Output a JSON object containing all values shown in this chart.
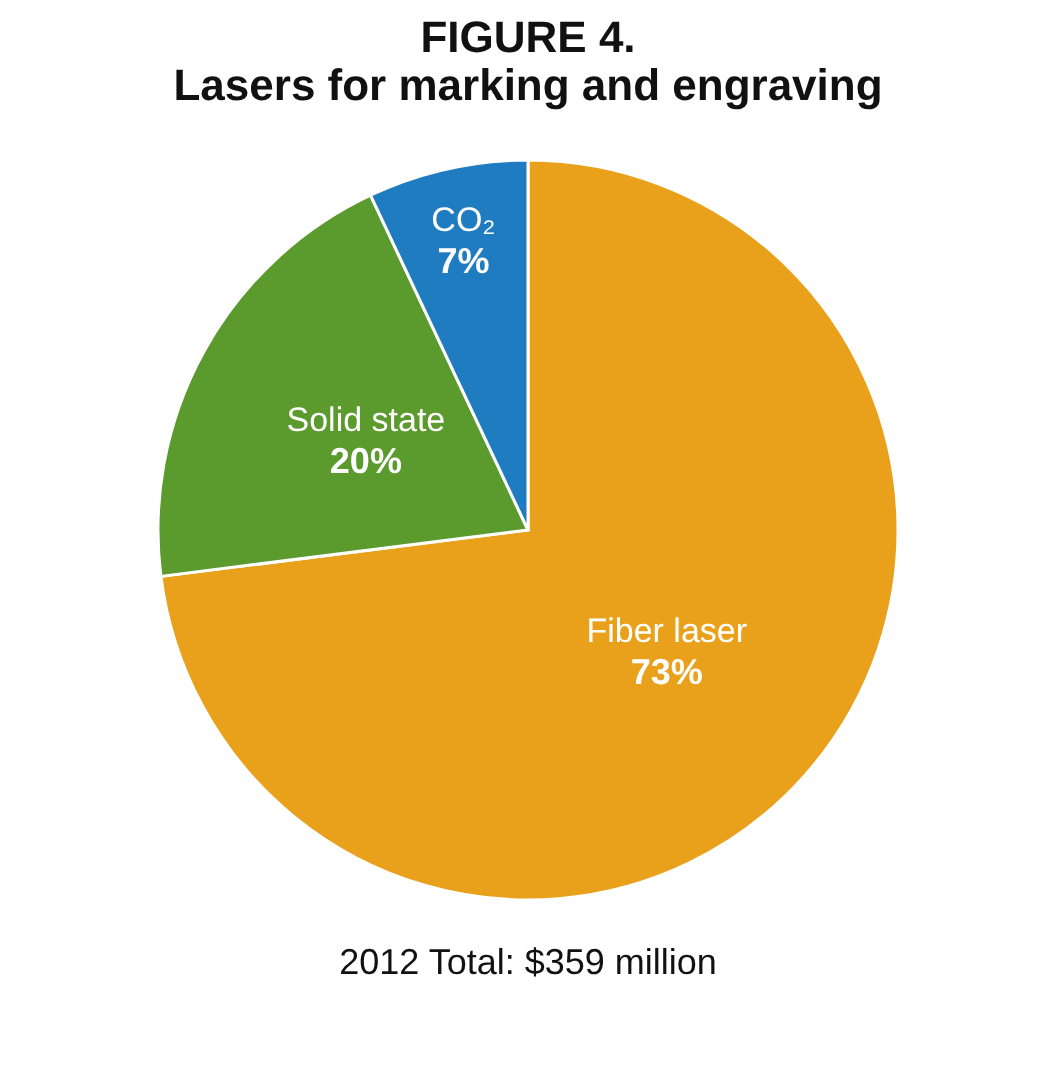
{
  "chart_data": {
    "type": "pie",
    "title": [
      "FIGURE 4.",
      "Lasers for marking and engraving"
    ],
    "categories": [
      "Fiber laser",
      "Solid state",
      "CO₂"
    ],
    "values": [
      73,
      20,
      7
    ],
    "colors": [
      "#e9a11c",
      "#5b9a2c",
      "#1f7cc0"
    ],
    "value_labels": [
      "73%",
      "20%",
      "7%"
    ],
    "annotations": [
      "2012 Total: $359 million"
    ],
    "legend": false
  }
}
